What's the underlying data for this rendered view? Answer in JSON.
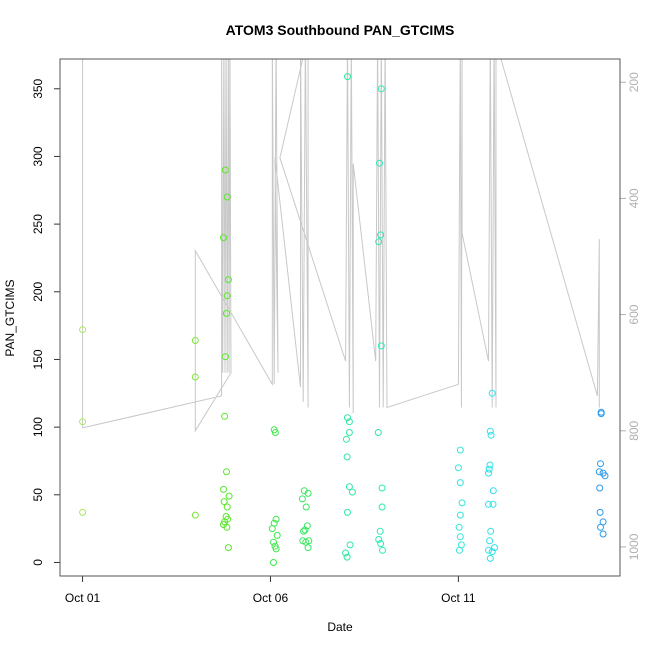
{
  "chart_data": {
    "type": "scatter",
    "title": "ATOM3 Southbound PAN_GTCIMS",
    "xlabel": "Date",
    "ylabel": "PAN_GTCIMS",
    "x_ticks": [
      {
        "day": 1,
        "label": "Oct 01"
      },
      {
        "day": 6,
        "label": "Oct 06"
      },
      {
        "day": 11,
        "label": "Oct 11"
      }
    ],
    "xlim": [
      0.4,
      15.3
    ],
    "ylim": [
      -10,
      372
    ],
    "y_ticks": [
      0,
      50,
      100,
      150,
      200,
      250,
      300,
      350
    ],
    "right_axis": {
      "ylim": [
        1050,
        160
      ],
      "ticks": [
        200,
        400,
        600,
        800,
        1000
      ],
      "color": "#b0b0b0"
    },
    "points": [
      {
        "x": 1.0,
        "y": 172,
        "c": "#a8e860"
      },
      {
        "x": 1.0,
        "y": 104,
        "c": "#a8e860"
      },
      {
        "x": 1.0,
        "y": 37,
        "c": "#a8e860"
      },
      {
        "x": 4.0,
        "y": 164,
        "c": "#7ee63c"
      },
      {
        "x": 4.0,
        "y": 137,
        "c": "#7ee63c"
      },
      {
        "x": 4.0,
        "y": 35,
        "c": "#7ee63c"
      },
      {
        "x": 4.75,
        "y": 240,
        "c": "#58e82a"
      },
      {
        "x": 4.8,
        "y": 290,
        "c": "#58e82a"
      },
      {
        "x": 4.85,
        "y": 270,
        "c": "#58e82a"
      },
      {
        "x": 4.88,
        "y": 209,
        "c": "#58e82a"
      },
      {
        "x": 4.85,
        "y": 197,
        "c": "#58e82a"
      },
      {
        "x": 4.83,
        "y": 184,
        "c": "#58e82a"
      },
      {
        "x": 4.8,
        "y": 152,
        "c": "#58e82a"
      },
      {
        "x": 4.78,
        "y": 108,
        "c": "#58e82a"
      },
      {
        "x": 4.83,
        "y": 67,
        "c": "#58e82a"
      },
      {
        "x": 4.75,
        "y": 54,
        "c": "#58e82a"
      },
      {
        "x": 4.9,
        "y": 49,
        "c": "#58e82a"
      },
      {
        "x": 4.77,
        "y": 45,
        "c": "#58e82a"
      },
      {
        "x": 4.85,
        "y": 41,
        "c": "#58e82a"
      },
      {
        "x": 4.82,
        "y": 34,
        "c": "#58e82a"
      },
      {
        "x": 4.86,
        "y": 32,
        "c": "#58e82a"
      },
      {
        "x": 4.78,
        "y": 30,
        "c": "#58e82a"
      },
      {
        "x": 4.75,
        "y": 28,
        "c": "#58e82a"
      },
      {
        "x": 4.84,
        "y": 26,
        "c": "#58e82a"
      },
      {
        "x": 4.88,
        "y": 11,
        "c": "#58e82a"
      },
      {
        "x": 6.1,
        "y": 98,
        "c": "#3ee84a"
      },
      {
        "x": 6.13,
        "y": 96,
        "c": "#3ee84a"
      },
      {
        "x": 6.15,
        "y": 32,
        "c": "#3ee84a"
      },
      {
        "x": 6.1,
        "y": 29,
        "c": "#3ee84a"
      },
      {
        "x": 6.05,
        "y": 25,
        "c": "#3ee84a"
      },
      {
        "x": 6.18,
        "y": 20,
        "c": "#3ee84a"
      },
      {
        "x": 6.08,
        "y": 15,
        "c": "#3ee84a"
      },
      {
        "x": 6.12,
        "y": 12,
        "c": "#3ee84a"
      },
      {
        "x": 6.15,
        "y": 10,
        "c": "#3ee84a"
      },
      {
        "x": 6.08,
        "y": 0,
        "c": "#3ee84a"
      },
      {
        "x": 6.9,
        "y": 53,
        "c": "#36e860"
      },
      {
        "x": 7.0,
        "y": 51,
        "c": "#36e860"
      },
      {
        "x": 6.85,
        "y": 47,
        "c": "#36e860"
      },
      {
        "x": 6.95,
        "y": 41,
        "c": "#36e860"
      },
      {
        "x": 6.98,
        "y": 27,
        "c": "#36e860"
      },
      {
        "x": 6.92,
        "y": 24,
        "c": "#36e860"
      },
      {
        "x": 6.88,
        "y": 23,
        "c": "#36e860"
      },
      {
        "x": 6.86,
        "y": 16,
        "c": "#36e860"
      },
      {
        "x": 6.94,
        "y": 15,
        "c": "#36e860"
      },
      {
        "x": 7.02,
        "y": 16,
        "c": "#36e860"
      },
      {
        "x": 7.0,
        "y": 11,
        "c": "#36e860"
      },
      {
        "x": 8.05,
        "y": 359,
        "c": "#30e8a0"
      },
      {
        "x": 8.05,
        "y": 107,
        "c": "#30e8a0"
      },
      {
        "x": 8.1,
        "y": 104,
        "c": "#30e8a0"
      },
      {
        "x": 8.1,
        "y": 96,
        "c": "#30e8a0"
      },
      {
        "x": 8.02,
        "y": 91,
        "c": "#30e8a0"
      },
      {
        "x": 8.04,
        "y": 78,
        "c": "#30e8a0"
      },
      {
        "x": 8.1,
        "y": 56,
        "c": "#30e8a0"
      },
      {
        "x": 8.18,
        "y": 52,
        "c": "#30e8a0"
      },
      {
        "x": 8.05,
        "y": 37,
        "c": "#30e8a0"
      },
      {
        "x": 8.12,
        "y": 13,
        "c": "#30e8a0"
      },
      {
        "x": 8.0,
        "y": 7,
        "c": "#30e8a0"
      },
      {
        "x": 8.04,
        "y": 4,
        "c": "#30e8a0"
      },
      {
        "x": 8.95,
        "y": 350,
        "c": "#2ee8b4"
      },
      {
        "x": 8.9,
        "y": 295,
        "c": "#2ee8b4"
      },
      {
        "x": 8.93,
        "y": 242,
        "c": "#2ee8b4"
      },
      {
        "x": 8.88,
        "y": 237,
        "c": "#2ee8b4"
      },
      {
        "x": 8.95,
        "y": 160,
        "c": "#2ee8b4"
      },
      {
        "x": 8.87,
        "y": 96,
        "c": "#2ee8b4"
      },
      {
        "x": 8.97,
        "y": 55,
        "c": "#2ee8b4"
      },
      {
        "x": 8.97,
        "y": 41,
        "c": "#2ee8b4"
      },
      {
        "x": 8.92,
        "y": 23,
        "c": "#2ee8b4"
      },
      {
        "x": 8.88,
        "y": 17,
        "c": "#2ee8b4"
      },
      {
        "x": 8.93,
        "y": 14,
        "c": "#2ee8b4"
      },
      {
        "x": 8.98,
        "y": 9,
        "c": "#2ee8b4"
      },
      {
        "x": 11.05,
        "y": 83,
        "c": "#32e8d8"
      },
      {
        "x": 11.0,
        "y": 70,
        "c": "#32e8d8"
      },
      {
        "x": 11.05,
        "y": 59,
        "c": "#32e8d8"
      },
      {
        "x": 11.1,
        "y": 44,
        "c": "#32e8d8"
      },
      {
        "x": 11.05,
        "y": 35,
        "c": "#32e8d8"
      },
      {
        "x": 11.02,
        "y": 26,
        "c": "#32e8d8"
      },
      {
        "x": 11.05,
        "y": 19,
        "c": "#32e8d8"
      },
      {
        "x": 11.08,
        "y": 13,
        "c": "#32e8d8"
      },
      {
        "x": 11.03,
        "y": 9,
        "c": "#32e8d8"
      },
      {
        "x": 11.9,
        "y": 125,
        "c": "#30e0e8"
      },
      {
        "x": 11.85,
        "y": 97,
        "c": "#30e0e8"
      },
      {
        "x": 11.87,
        "y": 94,
        "c": "#30e0e8"
      },
      {
        "x": 11.84,
        "y": 72,
        "c": "#30e0e8"
      },
      {
        "x": 11.82,
        "y": 69,
        "c": "#30e0e8"
      },
      {
        "x": 11.8,
        "y": 66,
        "c": "#30e0e8"
      },
      {
        "x": 11.93,
        "y": 53,
        "c": "#30e0e8"
      },
      {
        "x": 11.8,
        "y": 43,
        "c": "#30e0e8"
      },
      {
        "x": 11.92,
        "y": 43,
        "c": "#30e0e8"
      },
      {
        "x": 11.86,
        "y": 23,
        "c": "#30e0e8"
      },
      {
        "x": 11.83,
        "y": 16,
        "c": "#30e0e8"
      },
      {
        "x": 11.96,
        "y": 11,
        "c": "#30e0e8"
      },
      {
        "x": 11.9,
        "y": 8,
        "c": "#30e0e8"
      },
      {
        "x": 11.8,
        "y": 9,
        "c": "#30e0e8"
      },
      {
        "x": 11.85,
        "y": 3,
        "c": "#30e0e8"
      },
      {
        "x": 14.8,
        "y": 111,
        "c": "#2a9ae8"
      },
      {
        "x": 14.8,
        "y": 110,
        "c": "#2a9ae8"
      },
      {
        "x": 14.78,
        "y": 73,
        "c": "#2a9ae8"
      },
      {
        "x": 14.75,
        "y": 67,
        "c": "#2a9ae8"
      },
      {
        "x": 14.85,
        "y": 66,
        "c": "#2a9ae8"
      },
      {
        "x": 14.9,
        "y": 64,
        "c": "#2a9ae8"
      },
      {
        "x": 14.76,
        "y": 55,
        "c": "#2a9ae8"
      },
      {
        "x": 14.77,
        "y": 37,
        "c": "#2a9ae8"
      },
      {
        "x": 14.85,
        "y": 30,
        "c": "#2a9ae8"
      },
      {
        "x": 14.78,
        "y": 26,
        "c": "#2a9ae8"
      },
      {
        "x": 14.85,
        "y": 21,
        "c": "#2a9ae8"
      }
    ],
    "pressure_track": [
      [
        1.0,
        100
      ],
      [
        1.0,
        795
      ],
      [
        4.7,
        740
      ],
      [
        4.7,
        120
      ],
      [
        4.73,
        700
      ],
      [
        4.76,
        120
      ],
      [
        4.79,
        700
      ],
      [
        4.82,
        120
      ],
      [
        4.85,
        700
      ],
      [
        4.88,
        120
      ],
      [
        4.9,
        700
      ],
      [
        4.92,
        120
      ],
      [
        4.95,
        700
      ],
      [
        4.0,
        800
      ],
      [
        4.0,
        490
      ],
      [
        6.05,
        720
      ],
      [
        6.05,
        120
      ],
      [
        6.1,
        720
      ],
      [
        6.15,
        120
      ],
      [
        6.2,
        700
      ],
      [
        6.12,
        330
      ],
      [
        6.8,
        725
      ],
      [
        6.8,
        120
      ],
      [
        6.87,
        750
      ],
      [
        6.93,
        120
      ],
      [
        7.0,
        760
      ],
      [
        7.0,
        120
      ],
      [
        6.25,
        330
      ],
      [
        8.0,
        680
      ],
      [
        8.05,
        120
      ],
      [
        8.1,
        760
      ],
      [
        8.15,
        120
      ],
      [
        8.2,
        770
      ],
      [
        8.2,
        340
      ],
      [
        8.8,
        680
      ],
      [
        8.85,
        120
      ],
      [
        8.9,
        760
      ],
      [
        8.95,
        120
      ],
      [
        9.0,
        760
      ],
      [
        9.05,
        120
      ],
      [
        9.1,
        760
      ],
      [
        11.0,
        720
      ],
      [
        11.05,
        120
      ],
      [
        11.08,
        760
      ],
      [
        11.1,
        120
      ],
      [
        11.1,
        460
      ],
      [
        11.8,
        680
      ],
      [
        11.85,
        120
      ],
      [
        11.9,
        760
      ],
      [
        11.95,
        120
      ],
      [
        12.0,
        760
      ],
      [
        12.0,
        130
      ],
      [
        14.7,
        740
      ],
      [
        14.75,
        470
      ],
      [
        14.75,
        760
      ]
    ]
  }
}
